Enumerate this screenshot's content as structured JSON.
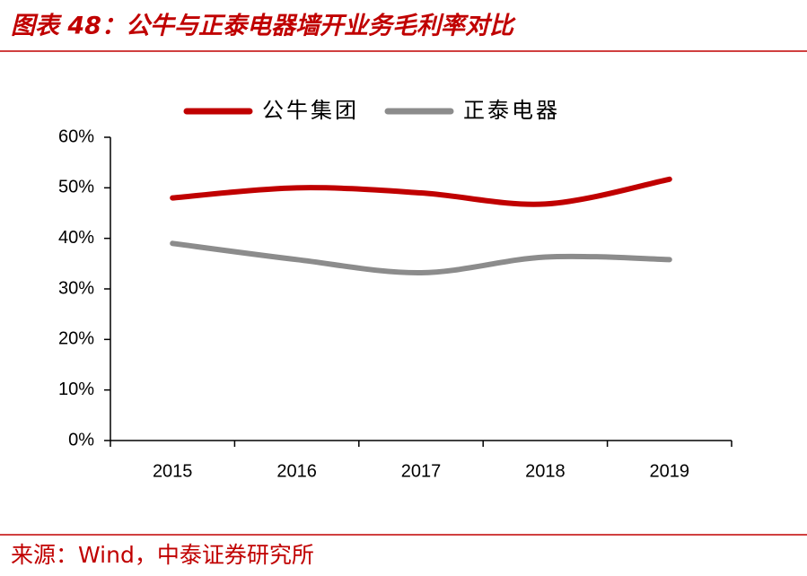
{
  "chart_data": {
    "type": "line",
    "title": "图表 48：公牛与正泰电器墙开业务毛利率对比",
    "source": "来源：Wind，中泰证券研究所",
    "categories": [
      "2015",
      "2016",
      "2017",
      "2018",
      "2019"
    ],
    "series": [
      {
        "name": "公牛集团",
        "color": "#c00000",
        "values": [
          48.0,
          50.0,
          49.0,
          46.8,
          51.7
        ]
      },
      {
        "name": "正泰电器",
        "color": "#8c8c8c",
        "values": [
          39.0,
          35.8,
          33.2,
          36.3,
          35.8
        ]
      }
    ],
    "ylim": [
      0,
      60
    ],
    "yticks": [
      {
        "value": 0,
        "label": "0%"
      },
      {
        "value": 10,
        "label": "10%"
      },
      {
        "value": 20,
        "label": "20%"
      },
      {
        "value": 30,
        "label": "30%"
      },
      {
        "value": 40,
        "label": "40%"
      },
      {
        "value": 50,
        "label": "50%"
      },
      {
        "value": 60,
        "label": "60%"
      }
    ],
    "smooth": true,
    "legend": "top"
  }
}
